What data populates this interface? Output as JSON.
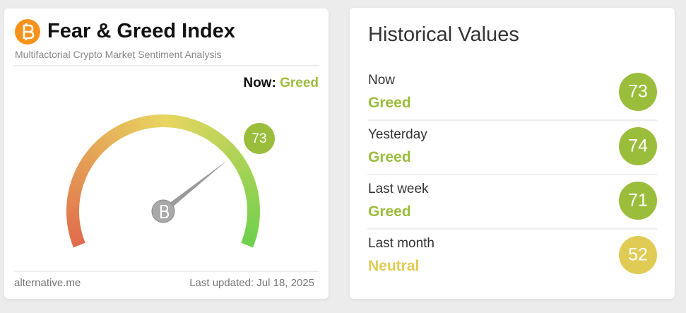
{
  "left_card": {
    "title": "Fear & Greed Index",
    "subtitle": "Multifactorial Crypto Market Sentiment Analysis",
    "now_label": "Now:",
    "now_status": "Greed",
    "status_color": "#9bbd3c",
    "gauge": {
      "value": 73,
      "color": "#9bbd3c"
    },
    "footer_source": "alternative.me",
    "footer_updated": "Last updated: Jul 18, 2025"
  },
  "right_card": {
    "title": "Historical Values",
    "rows": [
      {
        "period": "Now",
        "status": "Greed",
        "value": 73,
        "color": "#9bbd3c"
      },
      {
        "period": "Yesterday",
        "status": "Greed",
        "value": 74,
        "color": "#9bbd3c"
      },
      {
        "period": "Last week",
        "status": "Greed",
        "value": 71,
        "color": "#9bbd3c"
      },
      {
        "period": "Last month",
        "status": "Neutral",
        "value": 52,
        "color": "#e0cc55"
      }
    ]
  }
}
